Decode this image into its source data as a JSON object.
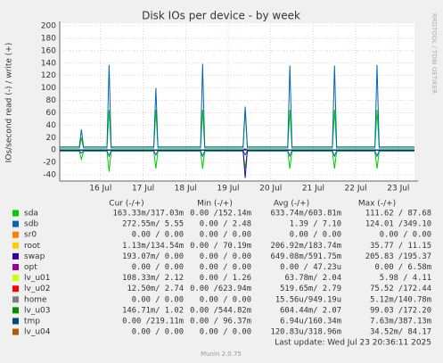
{
  "chart_data": {
    "type": "line",
    "title": "Disk IOs per device - by week",
    "y_label": "IOs/second read (-) / write (+)",
    "side_text": "RRDTOOL / TOBI OETIKER",
    "x": [
      15.04,
      15.5,
      15.55,
      15.6,
      16.15,
      16.2,
      16.25,
      17.25,
      17.3,
      17.35,
      18.35,
      18.4,
      18.45,
      19.35,
      19.4,
      19.45,
      20.4,
      20.45,
      20.5,
      21.45,
      21.5,
      21.55,
      22.45,
      22.5,
      22.55,
      23.38
    ],
    "xlim": [
      15.04,
      23.38
    ],
    "xticks": [
      {
        "value": 16,
        "label": "16 Jul"
      },
      {
        "value": 17,
        "label": "17 Jul"
      },
      {
        "value": 18,
        "label": "18 Jul"
      },
      {
        "value": 19,
        "label": "19 Jul"
      },
      {
        "value": 20,
        "label": "20 Jul"
      },
      {
        "value": 21,
        "label": "21 Jul"
      },
      {
        "value": 22,
        "label": "22 Jul"
      },
      {
        "value": 23,
        "label": "23 Jul"
      }
    ],
    "ylim": [
      -50,
      200
    ],
    "yticks": [
      -40,
      -20,
      0,
      20,
      40,
      60,
      80,
      100,
      120,
      140,
      160,
      180,
      200
    ],
    "grid": true,
    "columns": [
      "Cur (-/+)",
      "Min (-/+)",
      "Avg (-/+)",
      "Max (-/+)"
    ],
    "series": [
      {
        "name": "sda",
        "color": "#00cc00",
        "stats": [
          "163.33m/317.03m",
          "0.00 /152.14m",
          "633.74m/603.81m",
          "111.62 / 87.68"
        ],
        "values": [
          3,
          3,
          20,
          3,
          3,
          65,
          3,
          3,
          65,
          3,
          3,
          65,
          3,
          3,
          65,
          3,
          3,
          65,
          3,
          3,
          65,
          3,
          3,
          65,
          3,
          3
        ],
        "read": [
          -2,
          -2,
          -15,
          -2,
          -2,
          -35,
          -2,
          -2,
          -30,
          -2,
          -2,
          -30,
          -2,
          -2,
          -30,
          -2,
          -2,
          -30,
          -2,
          -2,
          -30,
          -2,
          -2,
          -30,
          -2,
          -2
        ]
      },
      {
        "name": "sdb",
        "color": "#0066b3",
        "stats": [
          "272.55m/ 5.55",
          "0.00 / 2.48",
          "1.39 / 7.10",
          "124.01 /349.10"
        ],
        "values": [
          5,
          5,
          33,
          5,
          5,
          137,
          5,
          5,
          100,
          5,
          5,
          139,
          5,
          5,
          70,
          5,
          5,
          136,
          5,
          5,
          136,
          5,
          5,
          137,
          5,
          5
        ],
        "read": [
          -1,
          -1,
          -5,
          -1,
          -1,
          -10,
          -1,
          -1,
          -8,
          -1,
          -1,
          -10,
          -1,
          -1,
          -8,
          -1,
          -1,
          -10,
          -1,
          -1,
          -10,
          -1,
          -1,
          -10,
          -1,
          -1
        ]
      },
      {
        "name": "sr0",
        "color": "#ff8000",
        "stats": [
          "0.00 / 0.00",
          "0.00 / 0.00",
          "0.00 / 0.00",
          "0.00 / 0.00"
        ]
      },
      {
        "name": "root",
        "color": "#ffcc00",
        "stats": [
          "1.13m/134.54m",
          "0.00 / 70.19m",
          "206.92m/183.74m",
          "35.77 / 11.15"
        ]
      },
      {
        "name": "swap",
        "color": "#330099",
        "stats": [
          "193.07m/ 0.00",
          "0.00 / 0.00",
          "649.08m/591.75m",
          "205.83 /195.37"
        ],
        "values": [
          0,
          0,
          0,
          0,
          0,
          0,
          0,
          0,
          0,
          0,
          0,
          0,
          0,
          0,
          2,
          0,
          0,
          0,
          0,
          0,
          0,
          0,
          0,
          0,
          0,
          0
        ],
        "read": [
          0,
          0,
          0,
          0,
          0,
          0,
          0,
          0,
          0,
          0,
          0,
          0,
          0,
          0,
          -45,
          0,
          0,
          0,
          0,
          0,
          0,
          0,
          0,
          0,
          0,
          0
        ]
      },
      {
        "name": "opt",
        "color": "#990099",
        "stats": [
          "0.00 / 0.00",
          "0.00 / 0.00",
          "0.00 / 47.23u",
          "0.00 / 6.58m"
        ]
      },
      {
        "name": "lv_u01",
        "color": "#ccff00",
        "stats": [
          "108.33m/ 2.12",
          "0.00 / 1.26",
          "63.78m/ 2.04",
          "5.98 / 4.11"
        ]
      },
      {
        "name": "lv_u02",
        "color": "#ff0000",
        "stats": [
          "12.50m/ 2.74",
          "0.00 /623.94m",
          "519.65m/ 2.79",
          "75.52 /172.44"
        ]
      },
      {
        "name": "home",
        "color": "#808080",
        "stats": [
          "0.00 / 0.00",
          "0.00 / 0.00",
          "15.56u/949.19u",
          "5.12m/140.78m"
        ]
      },
      {
        "name": "lv_u03",
        "color": "#008f00",
        "stats": [
          "146.71m/ 1.02",
          "0.00 /544.82m",
          "604.44m/ 2.07",
          "99.03 /172.20"
        ]
      },
      {
        "name": "tmp",
        "color": "#00487d",
        "stats": [
          "0.00 /219.11m",
          "0.00 / 96.37m",
          "6.94u/160.34m",
          "7.63m/387.13m"
        ]
      },
      {
        "name": "lv_u04",
        "color": "#b35a00",
        "stats": [
          "0.00 / 0.00",
          "0.00 / 0.00",
          "120.83u/318.96m",
          "34.52m/ 84.17"
        ]
      }
    ],
    "last_update": "Last update: Wed Jul 23 20:36:11 2025",
    "footer": "Munin 2.0.75"
  }
}
